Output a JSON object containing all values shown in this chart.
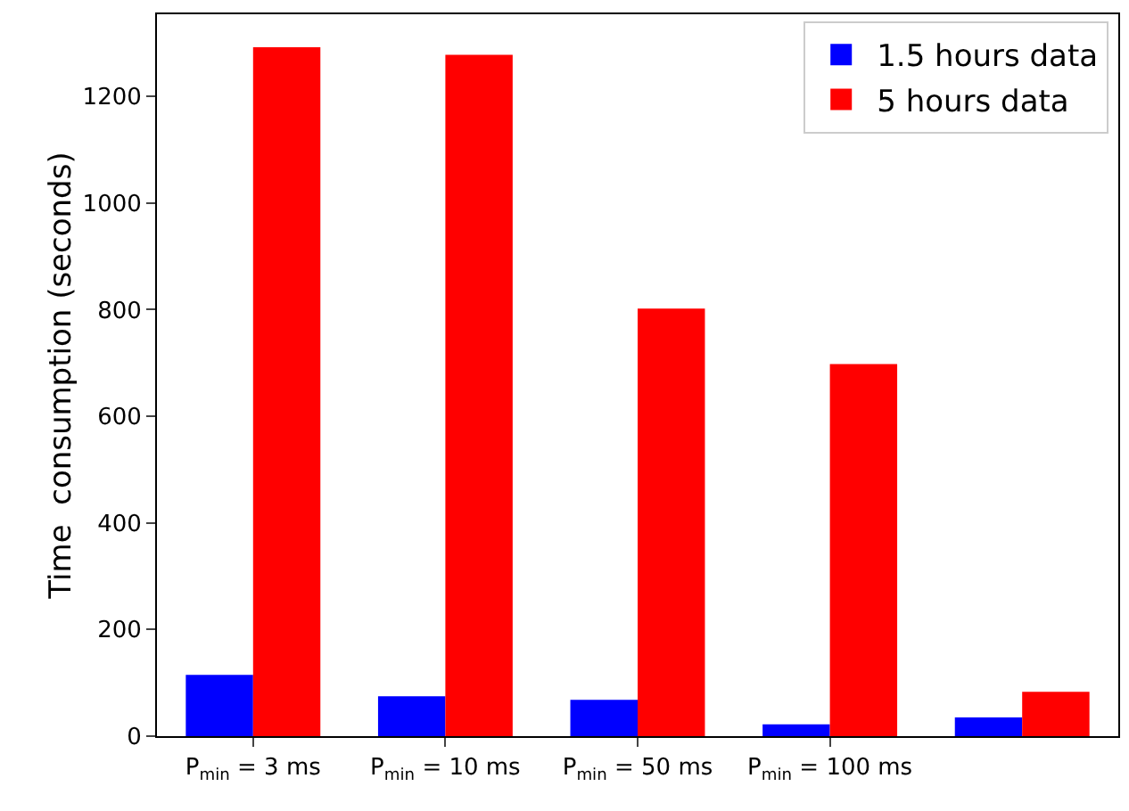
{
  "chart_data": {
    "type": "bar",
    "ylabel": "Time  consumption (seconds)",
    "categories": [
      "P$_{min}$ = 3 ms",
      "P$_{min}$ = 10 ms",
      "P$_{min}$ = 50 ms",
      "P$_{min}$ = 100 ms",
      null
    ],
    "series": [
      {
        "name": "1.5 hours data",
        "color": "#0000ff",
        "values": [
          115,
          75,
          68,
          22,
          35
        ]
      },
      {
        "name": "5 hours data",
        "color": "#ff0000",
        "values": [
          1292,
          1278,
          802,
          698,
          83
        ]
      }
    ],
    "ylim": [
      0,
      1354
    ],
    "yticks": [
      0,
      200,
      400,
      600,
      800,
      1000,
      1200
    ],
    "grid": false,
    "legend": "top right"
  }
}
